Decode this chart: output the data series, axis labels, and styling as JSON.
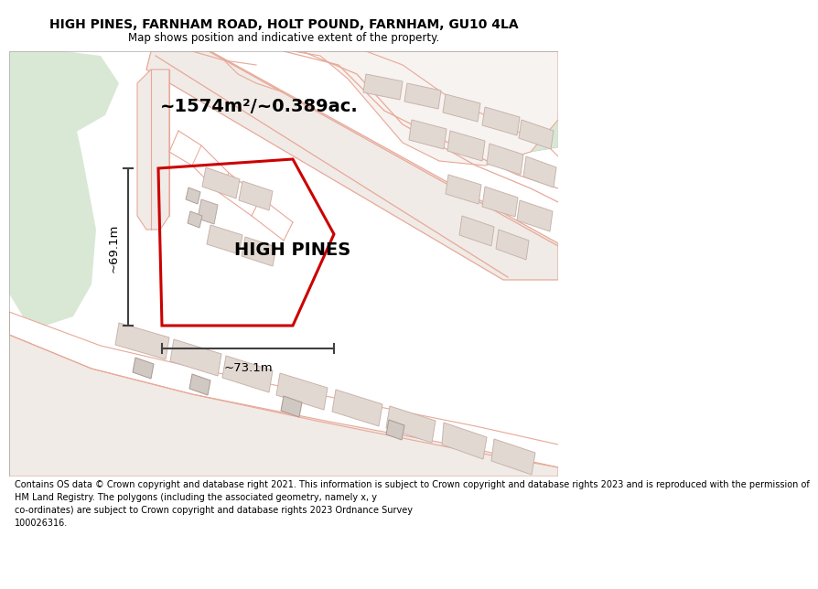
{
  "title": "HIGH PINES, FARNHAM ROAD, HOLT POUND, FARNHAM, GU10 4LA",
  "subtitle": "Map shows position and indicative extent of the property.",
  "area_label": "~1574m²/~0.389ac.",
  "property_label": "HIGH PINES",
  "dim_h": "~69.1m",
  "dim_w": "~73.1m",
  "footer": "Contains OS data © Crown copyright and database right 2021. This information is subject to Crown copyright and database rights 2023 and is reproduced with the permission of\nHM Land Registry. The polygons (including the associated geometry, namely x, y\nco-ordinates) are subject to Crown copyright and database rights 2023 Ordnance Survey\n100026316.",
  "bg_green": "#d9e8d5",
  "bg_land": "#f7f3f0",
  "bg_road": "#f0ebe7",
  "plot_line": "#e8a898",
  "road_line": "#d4b8b0",
  "building_fill": "#e2d8d2",
  "building_edge": "#c8b4ac",
  "red_outline": "#cc0000",
  "dim_color": "#404040",
  "title_fs": 10,
  "subtitle_fs": 8.5,
  "area_fs": 14,
  "prop_label_fs": 14,
  "dim_fs": 9.5,
  "footer_fs": 7
}
